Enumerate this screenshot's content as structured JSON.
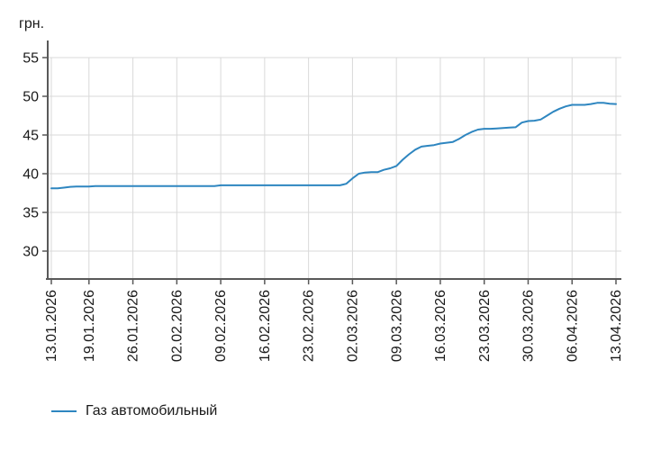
{
  "colors": {
    "line": "#2E86C0",
    "grid": "#D9D9D9",
    "axis": "#595959",
    "text": "#1A1A1A"
  },
  "legend": {
    "swatch": "line-swatch",
    "label": "Газ автомобильный"
  },
  "chart_data": {
    "type": "line",
    "title": "",
    "xlabel": "",
    "ylabel": "грн.",
    "grid": true,
    "legend_position": "bottom-left",
    "y_ticks": [
      30,
      35,
      40,
      45,
      50,
      55
    ],
    "ylim": [
      26.5,
      57.2
    ],
    "x_tick_labels": [
      "13.01.2026",
      "19.01.2026",
      "26.01.2026",
      "02.02.2026",
      "09.02.2026",
      "16.02.2026",
      "23.02.2026",
      "02.03.2026",
      "09.03.2026",
      "16.03.2026",
      "23.03.2026",
      "30.03.2026",
      "06.04.2026",
      "13.04.2026"
    ],
    "x_tick_indices": [
      0,
      6,
      13,
      20,
      27,
      34,
      41,
      48,
      55,
      62,
      69,
      76,
      83,
      90
    ],
    "n_points": 91,
    "series": [
      {
        "name": "Газ автомобильный",
        "color": "#2E86C0",
        "values": [
          38.1,
          38.1,
          38.2,
          38.3,
          38.35,
          38.35,
          38.35,
          38.4,
          38.4,
          38.4,
          38.4,
          38.4,
          38.4,
          38.4,
          38.4,
          38.4,
          38.4,
          38.4,
          38.4,
          38.4,
          38.4,
          38.4,
          38.4,
          38.4,
          38.4,
          38.4,
          38.4,
          38.5,
          38.5,
          38.5,
          38.5,
          38.5,
          38.5,
          38.5,
          38.5,
          38.5,
          38.5,
          38.5,
          38.5,
          38.5,
          38.5,
          38.5,
          38.5,
          38.5,
          38.5,
          38.5,
          38.5,
          38.7,
          39.4,
          40.0,
          40.15,
          40.2,
          40.2,
          40.5,
          40.7,
          41.0,
          41.8,
          42.5,
          43.1,
          43.5,
          43.6,
          43.7,
          43.9,
          44.0,
          44.1,
          44.5,
          45.0,
          45.4,
          45.7,
          45.8,
          45.8,
          45.85,
          45.9,
          45.95,
          46.0,
          46.6,
          46.8,
          46.85,
          47.0,
          47.5,
          48.0,
          48.4,
          48.7,
          48.9,
          48.9,
          48.9,
          49.0,
          49.15,
          49.15,
          49.05,
          49.0
        ]
      }
    ]
  }
}
